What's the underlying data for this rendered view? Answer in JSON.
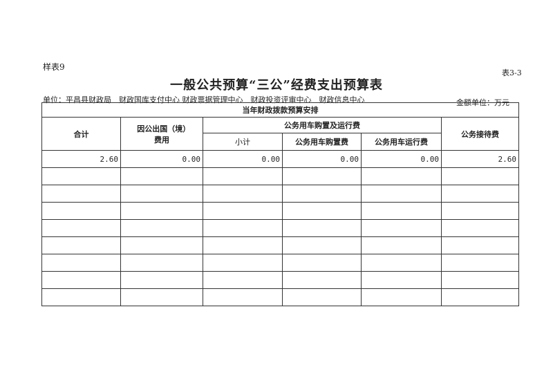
{
  "sample_label": "样表9",
  "table_no": "表3-3",
  "title": "一般公共预算“三公”经费支出预算表",
  "unit": "单位：平昌县财政局　财政国库支付中心 财政票据管理中心　财政投资评审中心　财政信息中心",
  "money_unit": "金额单位：万元",
  "headers": {
    "group": "当年财政拨款预算安排",
    "total": "合计",
    "abroad": "因公出国（境）费用",
    "vehicle": "公务用车购置及运行费",
    "subtotal": "小计",
    "purchase": "公务用车购置费",
    "operation": "公务用车运行费",
    "reception": "公务接待费"
  },
  "rows": [
    [
      "2.60",
      "0.00",
      "0.00",
      "0.00",
      "0.00",
      "2.60"
    ]
  ]
}
